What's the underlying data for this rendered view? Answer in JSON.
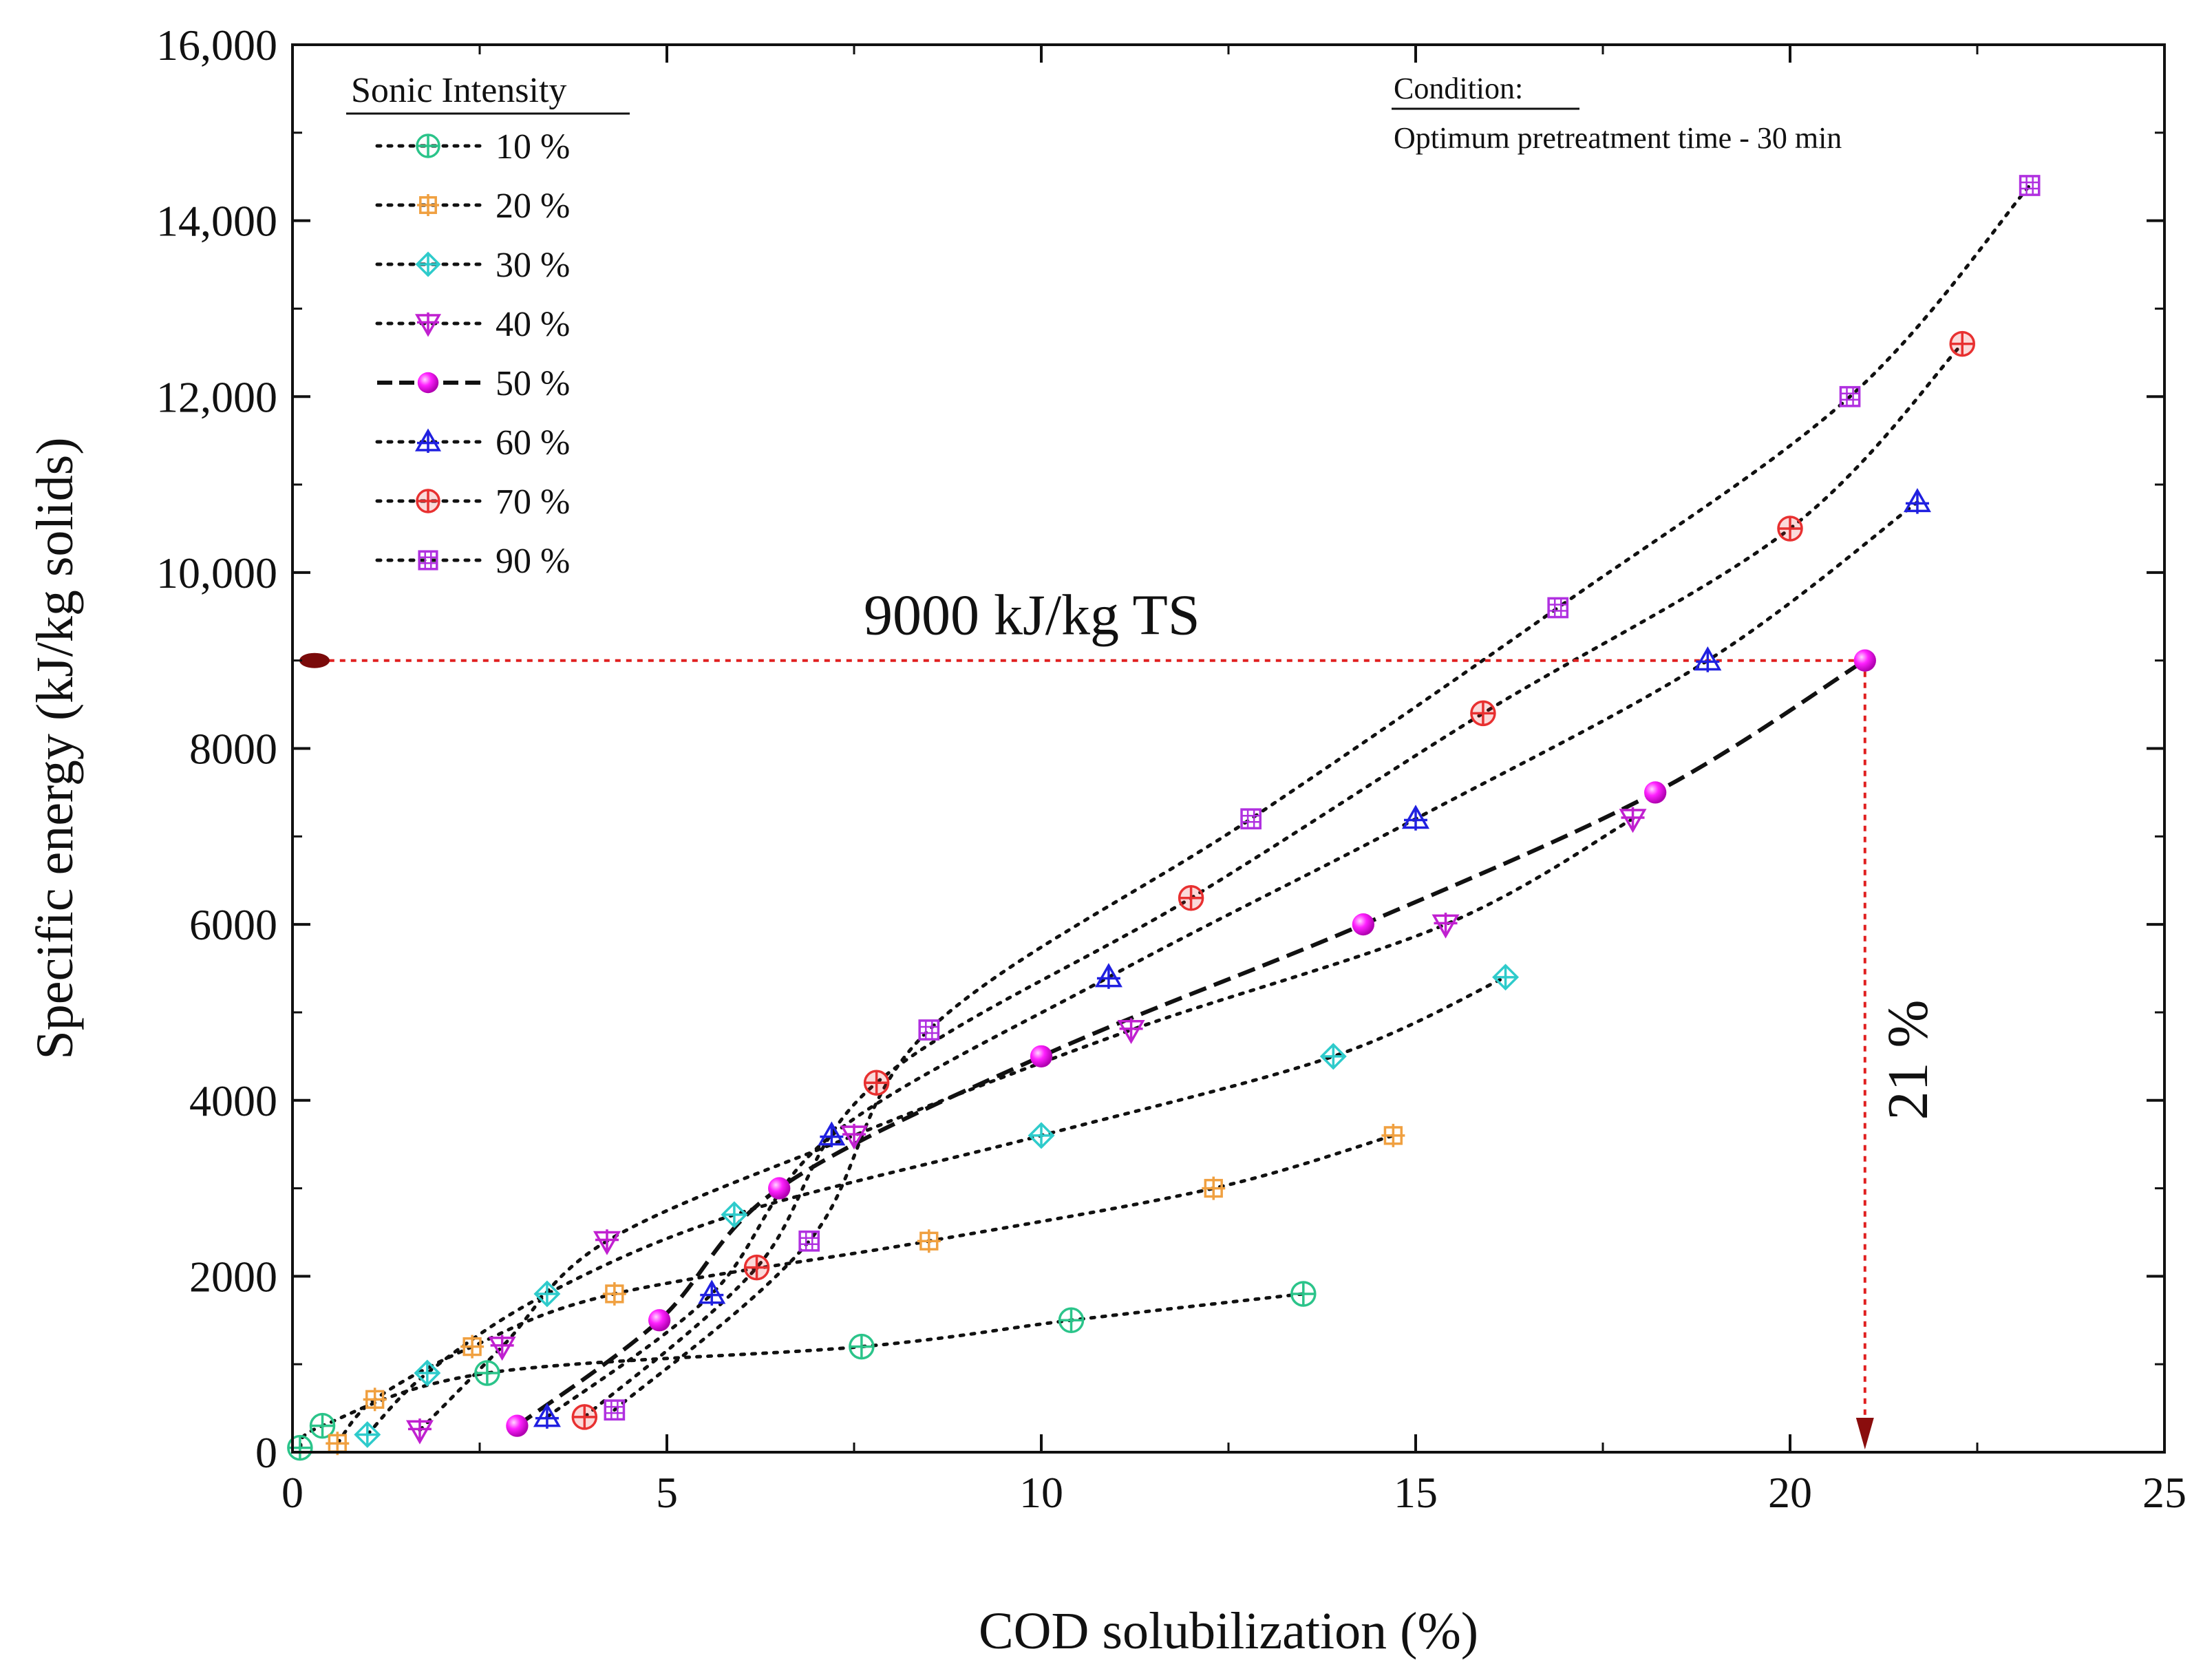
{
  "chart_data": {
    "type": "scatter",
    "xlabel": "COD solubilization (%)",
    "ylabel": "Specific energy (kJ/kg solids)",
    "xlim": [
      0,
      25
    ],
    "ylim": [
      0,
      16000
    ],
    "x_ticks": [
      0,
      5,
      10,
      15,
      20,
      25
    ],
    "x_tick_labels": [
      "0",
      "5",
      "10",
      "15",
      "20",
      "25"
    ],
    "y_ticks": [
      0,
      2000,
      4000,
      6000,
      8000,
      10000,
      12000,
      14000,
      16000
    ],
    "y_tick_labels": [
      "0",
      "2000",
      "4000",
      "6000",
      "8000",
      "10,000",
      "12,000",
      "14,000",
      "16,000"
    ],
    "legend": {
      "title": "Sonic Intensity",
      "placement": "top-left"
    },
    "condition_box": {
      "title": "Condition:",
      "text": "Optimum pretreatment time - 30 min"
    },
    "series": [
      {
        "name": "10 %",
        "marker": "circle-cross",
        "color": "#2bc48a",
        "line": "dotted",
        "points": [
          [
            0.1,
            50
          ],
          [
            0.4,
            300
          ],
          [
            2.6,
            900
          ],
          [
            7.6,
            1200
          ],
          [
            10.4,
            1500
          ],
          [
            13.5,
            1800
          ]
        ]
      },
      {
        "name": "20 %",
        "marker": "square-cross",
        "color": "#f0a040",
        "line": "dotted",
        "points": [
          [
            0.6,
            100
          ],
          [
            1.1,
            600
          ],
          [
            2.4,
            1200
          ],
          [
            4.3,
            1800
          ],
          [
            8.5,
            2400
          ],
          [
            12.3,
            3000
          ],
          [
            14.7,
            3600
          ]
        ]
      },
      {
        "name": "30 %",
        "marker": "diamond-cross",
        "color": "#2ecbcb",
        "line": "dotted",
        "points": [
          [
            1.0,
            200
          ],
          [
            1.8,
            900
          ],
          [
            3.4,
            1800
          ],
          [
            5.9,
            2700
          ],
          [
            10.0,
            3600
          ],
          [
            13.9,
            4500
          ],
          [
            16.2,
            5400
          ]
        ]
      },
      {
        "name": "40 %",
        "marker": "triangle-down-cross",
        "color": "#c020d0",
        "line": "dotted",
        "points": [
          [
            1.7,
            250
          ],
          [
            2.8,
            1200
          ],
          [
            4.2,
            2400
          ],
          [
            7.5,
            3600
          ],
          [
            11.2,
            4800
          ],
          [
            15.4,
            6000
          ],
          [
            17.9,
            7200
          ]
        ]
      },
      {
        "name": "50 %",
        "marker": "sphere",
        "color": "#ff10ff",
        "line": "dashed",
        "points": [
          [
            3.0,
            300
          ],
          [
            4.9,
            1500
          ],
          [
            6.5,
            3000
          ],
          [
            10.0,
            4500
          ],
          [
            14.3,
            6000
          ],
          [
            18.2,
            7500
          ],
          [
            21.0,
            9000
          ]
        ]
      },
      {
        "name": "60 %",
        "marker": "triangle-up-cross",
        "color": "#2020e0",
        "line": "dotted",
        "points": [
          [
            3.4,
            400
          ],
          [
            5.6,
            1800
          ],
          [
            7.2,
            3600
          ],
          [
            10.9,
            5400
          ],
          [
            15.0,
            7200
          ],
          [
            18.9,
            9000
          ],
          [
            21.7,
            10800
          ]
        ]
      },
      {
        "name": "70 %",
        "marker": "circle-plus",
        "color": "#e83030",
        "line": "dotted",
        "points": [
          [
            3.9,
            400
          ],
          [
            6.2,
            2100
          ],
          [
            7.8,
            4200
          ],
          [
            12.0,
            6300
          ],
          [
            15.9,
            8400
          ],
          [
            20.0,
            10500
          ],
          [
            22.3,
            12600
          ]
        ]
      },
      {
        "name": "90 %",
        "marker": "square-grid",
        "color": "#b030e0",
        "line": "dotted",
        "points": [
          [
            4.3,
            480
          ],
          [
            6.9,
            2400
          ],
          [
            8.5,
            4800
          ],
          [
            12.8,
            7200
          ],
          [
            16.9,
            9600
          ],
          [
            20.8,
            12000
          ],
          [
            23.2,
            14400
          ]
        ]
      }
    ],
    "annotations": [
      {
        "name": "energy-annotation",
        "text": "9000 kJ/kg TS",
        "type": "horizontal-arrow",
        "y": 9000,
        "x_from": 21.0,
        "x_to": 0.3,
        "color": "#e02020"
      },
      {
        "name": "cod-annotation",
        "text": "21 %",
        "type": "vertical-arrow",
        "x": 21.0,
        "y_from": 9000,
        "y_to": 0,
        "color": "#e02020"
      }
    ]
  }
}
